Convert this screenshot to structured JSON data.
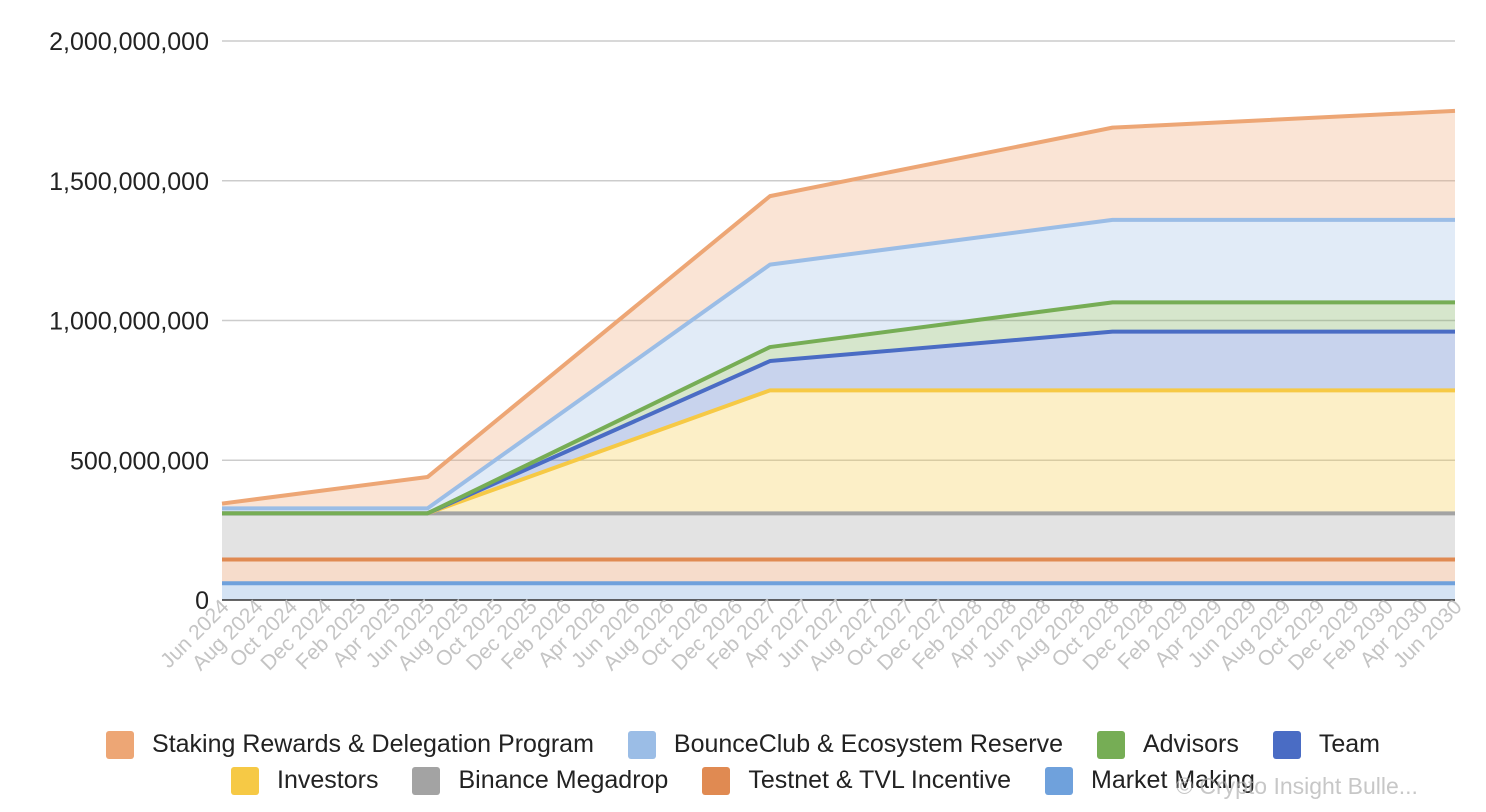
{
  "chart_data": {
    "type": "area",
    "stacked": true,
    "title": "",
    "xlabel": "",
    "ylabel": "",
    "ylim": [
      0,
      2000000000
    ],
    "y_ticks": [
      0,
      500000000,
      1000000000,
      1500000000,
      2000000000
    ],
    "y_tick_labels": [
      "0",
      "500,000,000",
      "1,000,000,000",
      "1,500,000,000",
      "2,000,000,000"
    ],
    "grid": true,
    "x_tick_labels": [
      "Jun 2024",
      "Aug 2024",
      "Oct 2024",
      "Dec 2024",
      "Feb 2025",
      "Apr 2025",
      "Jun 2025",
      "Aug 2025",
      "Oct 2025",
      "Dec 2025",
      "Feb 2026",
      "Apr 2026",
      "Jun 2026",
      "Aug 2026",
      "Oct 2026",
      "Dec 2026",
      "Feb 2027",
      "Apr 2027",
      "Jun 2027",
      "Aug 2027",
      "Oct 2027",
      "Dec 2027",
      "Feb 2028",
      "Apr 2028",
      "Jun 2028",
      "Aug 2028",
      "Oct 2028",
      "Dec 2028",
      "Feb 2029",
      "Apr 2029",
      "Jun 2029",
      "Aug 2029",
      "Oct 2029",
      "Dec 2029",
      "Feb 2030",
      "Apr 2030",
      "Jun 2030"
    ],
    "x_points": [
      0,
      6,
      16,
      26,
      36
    ],
    "legend_position": "bottom",
    "series": [
      {
        "name": "Market Making",
        "color": "#6fa1dc",
        "values": [
          60000000,
          60000000,
          60000000,
          60000000,
          60000000
        ]
      },
      {
        "name": "Testnet & TVL Incentive",
        "color": "#e08a52",
        "values": [
          85000000,
          85000000,
          85000000,
          85000000,
          85000000
        ]
      },
      {
        "name": "Binance Megadrop",
        "color": "#a3a3a3",
        "values": [
          165000000,
          165000000,
          165000000,
          165000000,
          165000000
        ]
      },
      {
        "name": "Investors",
        "color": "#f6c945",
        "values": [
          0,
          0,
          440000000,
          440000000,
          440000000
        ]
      },
      {
        "name": "Team",
        "color": "#4a6cc4",
        "values": [
          0,
          0,
          105000000,
          210000000,
          210000000
        ]
      },
      {
        "name": "Advisors",
        "color": "#76ad55",
        "values": [
          0,
          0,
          50000000,
          105000000,
          105000000
        ]
      },
      {
        "name": "BounceClub & Ecosystem Reserve",
        "color": "#9bbde6",
        "values": [
          18000000,
          18000000,
          295000000,
          295000000,
          295000000
        ]
      },
      {
        "name": "Staking Rewards & Delegation Program",
        "color": "#eda675",
        "values": [
          17000000,
          112000000,
          245000000,
          330000000,
          390000000
        ]
      }
    ]
  },
  "legend": {
    "row1": [
      {
        "label": "Staking Rewards & Delegation Program",
        "color": "#eda675"
      },
      {
        "label": "BounceClub & Ecosystem Reserve",
        "color": "#9bbde6"
      },
      {
        "label": "Advisors",
        "color": "#76ad55"
      },
      {
        "label": "Team",
        "color": "#4a6cc4"
      }
    ],
    "row2": [
      {
        "label": "Investors",
        "color": "#f6c945"
      },
      {
        "label": "Binance Megadrop",
        "color": "#a3a3a3"
      },
      {
        "label": "Testnet & TVL Incentive",
        "color": "#e08a52"
      },
      {
        "label": "Market Making",
        "color": "#6fa1dc"
      }
    ]
  },
  "watermark": "© Crypto Insight Bulle..."
}
